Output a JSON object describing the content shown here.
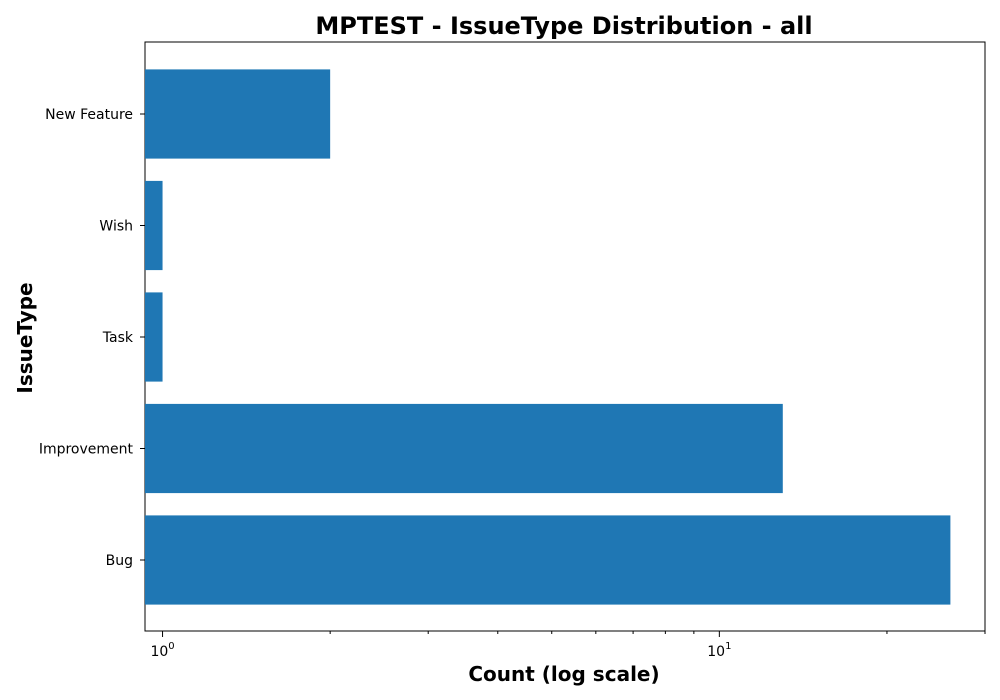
{
  "chart_data": {
    "type": "bar",
    "orientation": "horizontal",
    "title": "MPTEST - IssueType Distribution - all",
    "xlabel": "Count (log scale)",
    "ylabel": "IssueType",
    "xscale": "log",
    "xlim": [
      0.93,
      30
    ],
    "categories": [
      "Bug",
      "Improvement",
      "Task",
      "Wish",
      "New Feature"
    ],
    "values": [
      26,
      13,
      1,
      1,
      2
    ],
    "bar_color": "#1f77b4",
    "grid": false,
    "xticks": [
      {
        "base": "10",
        "exp": "0",
        "value": 1
      },
      {
        "base": "10",
        "exp": "1",
        "value": 10
      }
    ]
  }
}
